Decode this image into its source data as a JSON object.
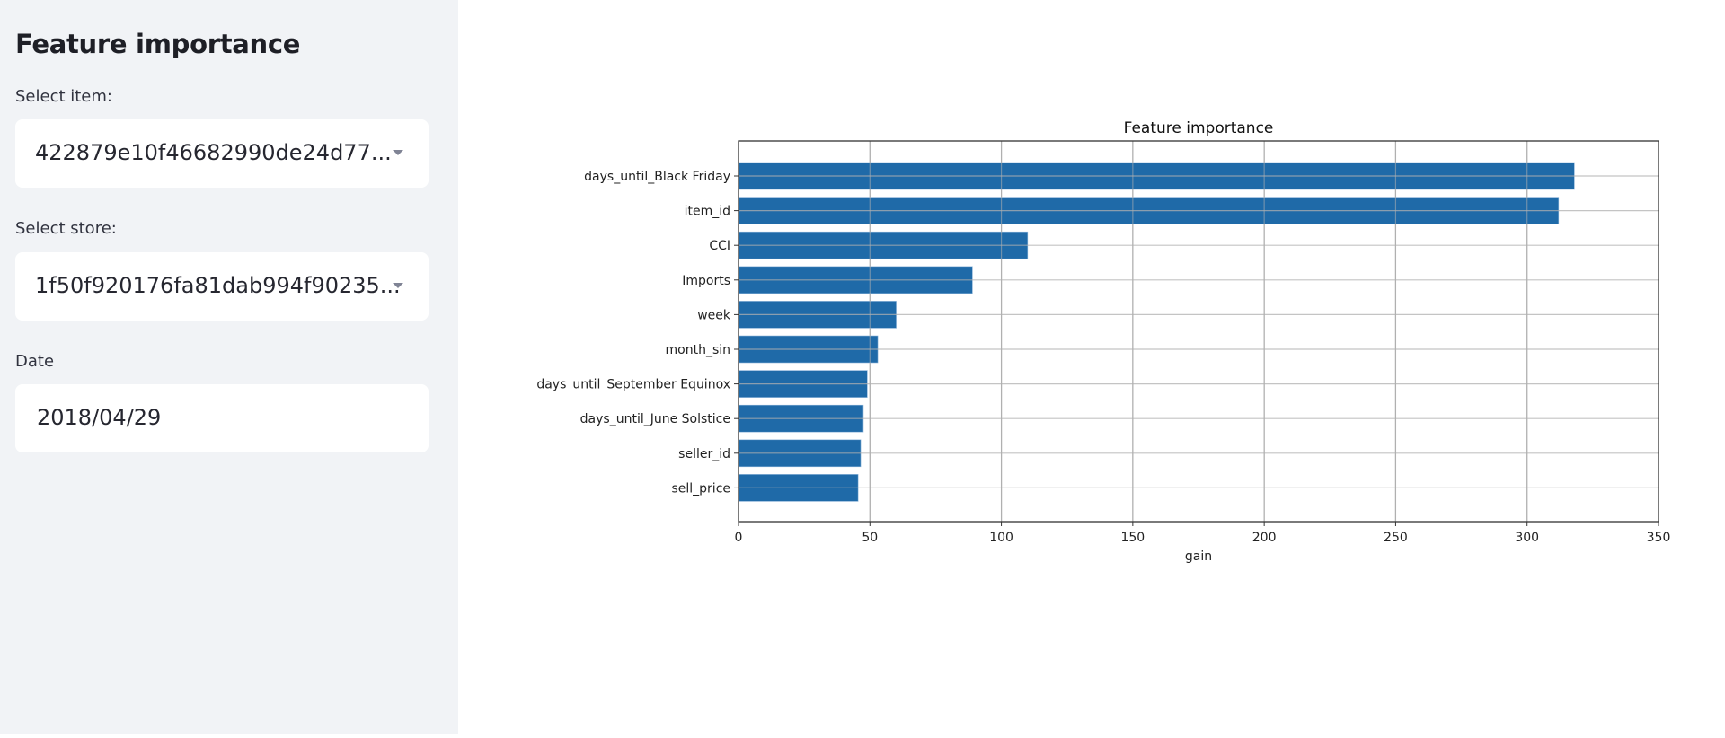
{
  "sidebar": {
    "title": "Feature importance",
    "item_select": {
      "label": "Select item:",
      "value": "422879e10f46682990de24d77..."
    },
    "store_select": {
      "label": "Select store:",
      "value": "1f50f920176fa81dab994f90235..."
    },
    "date_input": {
      "label": "Date",
      "value": "2018/04/29"
    }
  },
  "colors": {
    "bar": "#1f6aa8",
    "grid": "#b0b0b0",
    "sidebar_bg": "#f1f3f6"
  },
  "chart_data": {
    "type": "bar",
    "orientation": "horizontal",
    "title": "Feature importance",
    "xlabel": "gain",
    "ylabel": "",
    "xlim": [
      0,
      350
    ],
    "xticks": [
      0,
      50,
      100,
      150,
      200,
      250,
      300,
      350
    ],
    "grid": true,
    "categories": [
      "days_until_Black Friday",
      "item_id",
      "CCI",
      "Imports",
      "week",
      "month_sin",
      "days_until_September Equinox",
      "days_until_June Solstice",
      "seller_id",
      "sell_price"
    ],
    "values": [
      318,
      312,
      110,
      89,
      60,
      53,
      49,
      47.5,
      46.5,
      45.5
    ]
  }
}
